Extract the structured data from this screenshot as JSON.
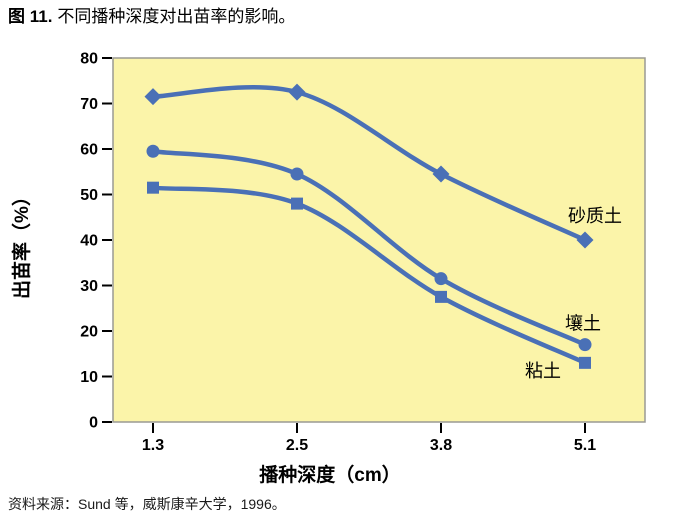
{
  "title": {
    "prefix": "图 11.",
    "text": "不同播种深度对出苗率的影响。"
  },
  "source": "资料来源：Sund 等，威斯康辛大学，1996。",
  "colors": {
    "series_blue": "#4a70b6",
    "plot_bg": "#fbf4a9",
    "plot_border": "#9a9a94",
    "axis_text": "#000000"
  },
  "chart_data": {
    "type": "line",
    "x": [
      1.3,
      2.5,
      3.8,
      5.1
    ],
    "x_tick_labels": [
      "1.3",
      "2.5",
      "3.8",
      "5.1"
    ],
    "xlabel": "播种深度（cm）",
    "ylabel": "出苗率（%）",
    "ylim": [
      0,
      80
    ],
    "y_ticks": [
      0,
      10,
      20,
      30,
      40,
      50,
      60,
      70,
      80
    ],
    "grid": false,
    "legend_position": "inline-right-of-plot",
    "series": [
      {
        "id": "sandy-soil",
        "name": "砂质土",
        "marker": "diamond",
        "values": [
          71.5,
          72.5,
          54.5,
          40
        ],
        "label_dx": 10,
        "label_dy": -18
      },
      {
        "id": "loam",
        "name": "壤土",
        "marker": "circle",
        "values": [
          59.5,
          54.5,
          31.5,
          17
        ],
        "label_dx": -2,
        "label_dy": -15
      },
      {
        "id": "clay",
        "name": "粘土",
        "marker": "square",
        "values": [
          51.5,
          48,
          27.5,
          13
        ],
        "label_dx": -42,
        "label_dy": 14
      }
    ]
  }
}
